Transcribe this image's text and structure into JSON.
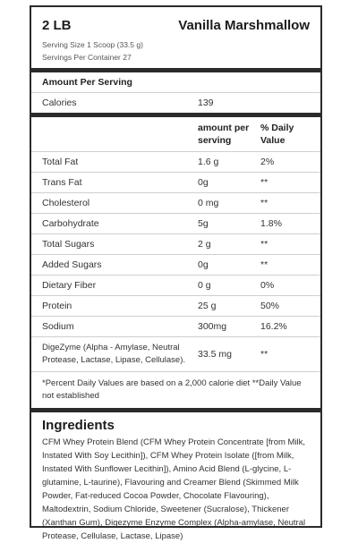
{
  "header": {
    "size": "2 LB",
    "flavor": "Vanilla Marshmallow",
    "serving_size": "Serving Size 1 Scoop (33.5 g)",
    "servings_per_container": "Servings Per Container 27"
  },
  "amount_per_serving_label": "Amount Per Serving",
  "calories": {
    "label": "Calories",
    "value": "139"
  },
  "columns": {
    "amount": "amount per serving",
    "daily": "% Daily Value"
  },
  "rows": [
    {
      "name": "Total Fat",
      "amount": "1.6 g",
      "dv": "2%"
    },
    {
      "name": "Trans Fat",
      "amount": "0g",
      "dv": "**"
    },
    {
      "name": "Cholesterol",
      "amount": "0 mg",
      "dv": "**"
    },
    {
      "name": "Carbohydrate",
      "amount": "5g",
      "dv": "1.8%"
    },
    {
      "name": "Total Sugars",
      "amount": "2 g",
      "dv": "**"
    },
    {
      "name": "Added Sugars",
      "amount": "0g",
      "dv": "**"
    },
    {
      "name": "Dietary Fiber",
      "amount": "0 g",
      "dv": "0%"
    },
    {
      "name": "Protein",
      "amount": "25 g",
      "dv": "50%"
    },
    {
      "name": "Sodium",
      "amount": "300mg",
      "dv": "16.2%"
    },
    {
      "name": "DigeZyme (Alpha - Amylase, Neutral Protease, Lactase, Lipase, Cellulase).",
      "amount": "33.5 mg",
      "dv": "**"
    }
  ],
  "footnote": "*Percent Daily Values are based on a 2,000 calorie diet **Daily Value not established",
  "ingredients": {
    "title": "Ingredients",
    "text": "CFM Whey Protein Blend (CFM Whey Protein Concentrate [from Milk, Instated With Soy Lecithin]), CFM Whey Protein Isolate ([from Milk, Instated With Sunflower Lecithin]), Amino Acid Blend (L-glycine, L-glutamine, L-taurine), Flavouring and Creamer Blend (Skimmed Milk Powder, Fat-reduced Cocoa Powder, Chocolate Flavouring), Maltodextrin, Sodium Chloride, Sweetener (Sucralose), Thickener (Xanthan Gum), Digezyme Enzyme Complex (Alpha-amylase, Neutral Protease, Cellulase, Lactase, Lipase)"
  }
}
